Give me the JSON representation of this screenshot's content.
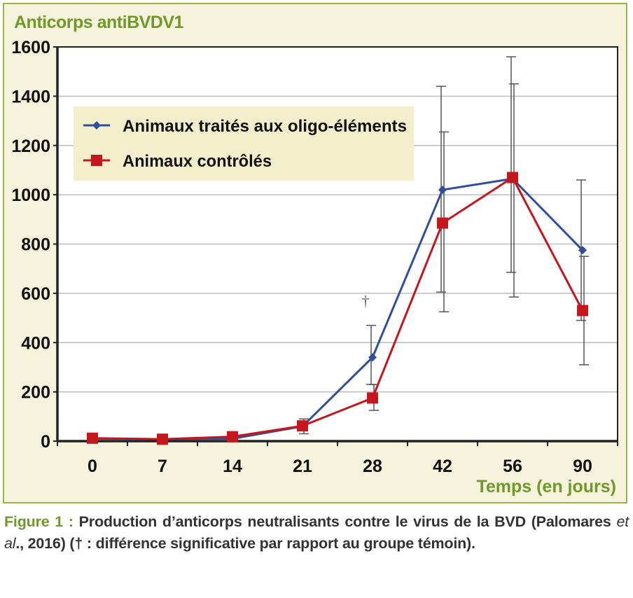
{
  "chart_data": {
    "type": "line",
    "title": "Anticorps antiBVDV1",
    "xlabel": "Temps (en jours)",
    "ylabel": "",
    "categories": [
      "0",
      "7",
      "14",
      "21",
      "28",
      "42",
      "56",
      "90"
    ],
    "ylim": [
      0,
      1600
    ],
    "yticks": [
      0,
      200,
      400,
      600,
      800,
      1000,
      1200,
      1400,
      1600
    ],
    "grid": true,
    "legend_position": "top-left",
    "series": [
      {
        "name": "Animaux traités aux oligo-éléments",
        "color": "#2f4f9e",
        "marker": "diamond",
        "values": [
          10,
          8,
          10,
          60,
          340,
          1020,
          1065,
          775
        ],
        "error": [
          null,
          null,
          null,
          null,
          [
            230,
            470
          ],
          [
            605,
            1440
          ],
          [
            685,
            1560
          ],
          [
            490,
            1060
          ]
        ]
      },
      {
        "name": "Animaux contrôlés",
        "color": "#c4161c",
        "marker": "square",
        "values": [
          12,
          8,
          18,
          62,
          175,
          885,
          1070,
          530
        ],
        "error": [
          null,
          null,
          null,
          [
            30,
            90
          ],
          [
            125,
            230
          ],
          [
            525,
            1255
          ],
          [
            585,
            1450
          ],
          [
            310,
            750
          ]
        ]
      }
    ],
    "annotations": [
      {
        "text": "†",
        "category": "28",
        "y": 570
      }
    ]
  },
  "caption": {
    "label": "Figure 1 :",
    "line1": "Production d’anticorps neutralisants contre le virus de la BVD",
    "part2a": "(Palomares",
    "etal": "et al",
    "part2b": "., 2016) († : différence significative par rapport au groupe témoin)."
  },
  "colors": {
    "accent_green": "#6e9a2a",
    "panel_bg": "#f6f3dc",
    "plot_bg": "#ffffff",
    "legend_bg": "#f3efcc"
  }
}
